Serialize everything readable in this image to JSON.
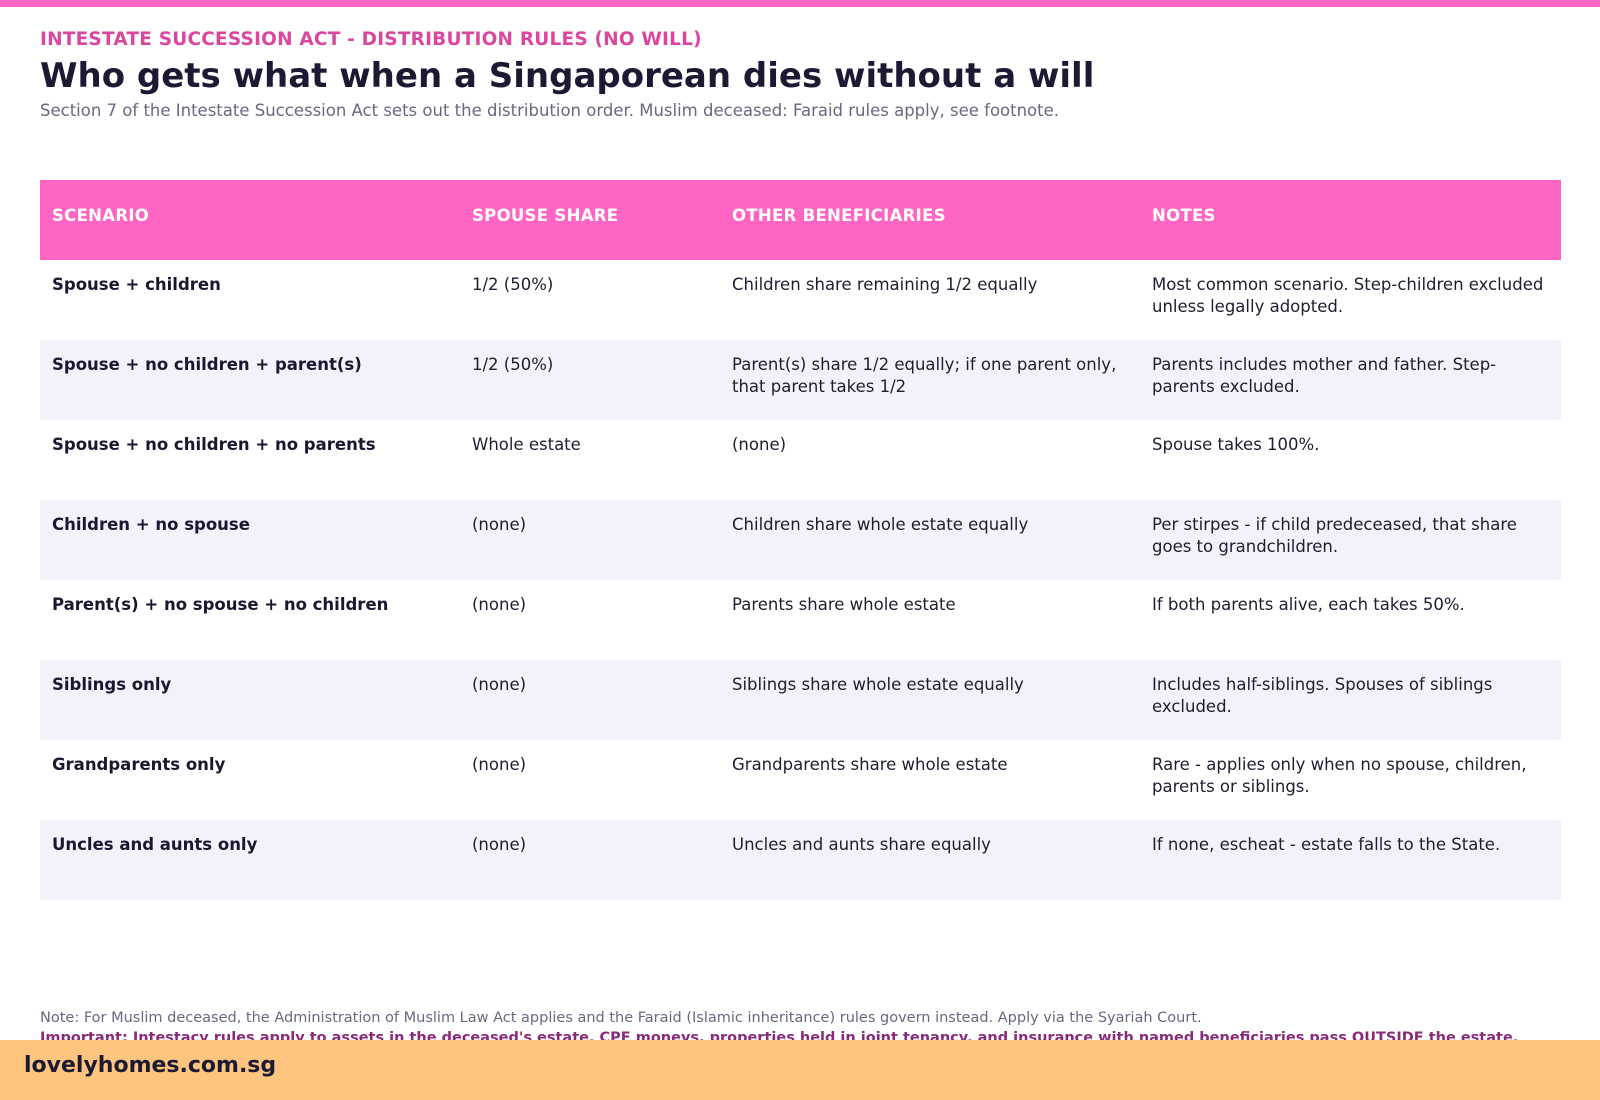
{
  "header": {
    "eyebrow": "INTESTATE SUCCESSION ACT - DISTRIBUTION RULES (NO WILL)",
    "title": "Who gets what when a Singaporean dies without a will",
    "subtitle": "Section 7 of the Intestate Succession Act sets out the distribution order. Muslim deceased: Faraid rules apply, see footnote."
  },
  "table": {
    "columns": [
      "SCENARIO",
      "SPOUSE SHARE",
      "OTHER BENEFICIARIES",
      "NOTES"
    ],
    "rows": [
      {
        "scenario": "Spouse + children",
        "spouse": "1/2 (50%)",
        "others": "Children share remaining 1/2 equally",
        "notes": "Most common scenario. Step-children excluded unless legally adopted."
      },
      {
        "scenario": "Spouse + no children + parent(s)",
        "spouse": "1/2 (50%)",
        "others": "Parent(s) share 1/2 equally; if one parent only, that parent takes 1/2",
        "notes": "Parents includes mother and father. Step-parents excluded."
      },
      {
        "scenario": "Spouse + no children + no parents",
        "spouse": "Whole estate",
        "others": "(none)",
        "notes": "Spouse takes 100%."
      },
      {
        "scenario": "Children + no spouse",
        "spouse": "(none)",
        "others": "Children share whole estate equally",
        "notes": "Per stirpes - if child predeceased, that share goes to grandchildren."
      },
      {
        "scenario": "Parent(s) + no spouse + no children",
        "spouse": "(none)",
        "others": "Parents share whole estate",
        "notes": "If both parents alive, each takes 50%."
      },
      {
        "scenario": "Siblings only",
        "spouse": "(none)",
        "others": "Siblings share whole estate equally",
        "notes": "Includes half-siblings. Spouses of siblings excluded."
      },
      {
        "scenario": "Grandparents only",
        "spouse": "(none)",
        "others": "Grandparents share whole estate",
        "notes": "Rare - applies only when no spouse, children, parents or siblings."
      },
      {
        "scenario": "Uncles and aunts only",
        "spouse": "(none)",
        "others": "Uncles and aunts share equally",
        "notes": "If none, escheat - estate falls to the State."
      }
    ]
  },
  "footnotes": {
    "note": "Note: For Muslim deceased, the Administration of Muslim Law Act applies and the Faraid (Islamic inheritance) rules govern instead. Apply via the Syariah Court.",
    "important": "Important: Intestacy rules apply to assets in the deceased's estate. CPF moneys, properties held in joint tenancy, and insurance with named beneficiaries pass OUTSIDE the estate."
  },
  "footer": {
    "brand": "lovelyhomes.com.sg"
  },
  "colors": {
    "accent": "#ff66c4",
    "eyebrow": "#d9479f",
    "footer_bg": "#fdc57d",
    "alt_row": "#f3f1fa"
  }
}
